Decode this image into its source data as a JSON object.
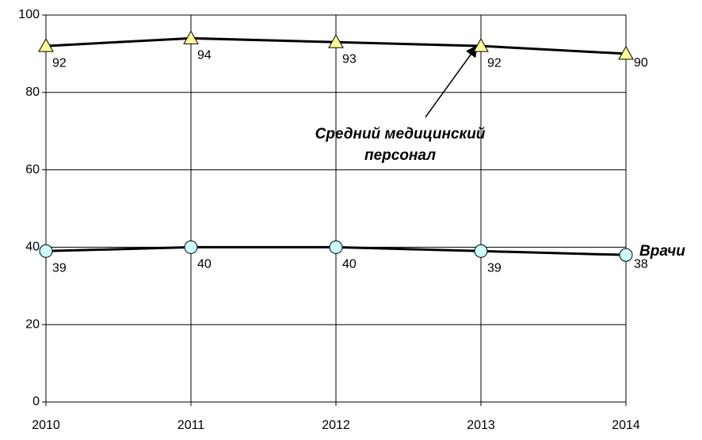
{
  "chart_data": {
    "type": "line",
    "x": [
      2010,
      2011,
      2012,
      2013,
      2014
    ],
    "xlim": [
      2010,
      2014
    ],
    "xticks": [
      2010,
      2011,
      2012,
      2013,
      2014
    ],
    "ylim": [
      0,
      100
    ],
    "yticks": [
      0,
      20,
      40,
      60,
      80,
      100
    ],
    "grid": true,
    "series": [
      {
        "name": "Средний медицинский персонал",
        "color": "#ffff99",
        "marker": "triangle",
        "values": [
          92,
          94,
          93,
          92,
          90
        ]
      },
      {
        "name": "Врачи",
        "color": "#ccffff",
        "marker": "circle",
        "values": [
          39,
          40,
          40,
          39,
          38
        ]
      }
    ]
  }
}
